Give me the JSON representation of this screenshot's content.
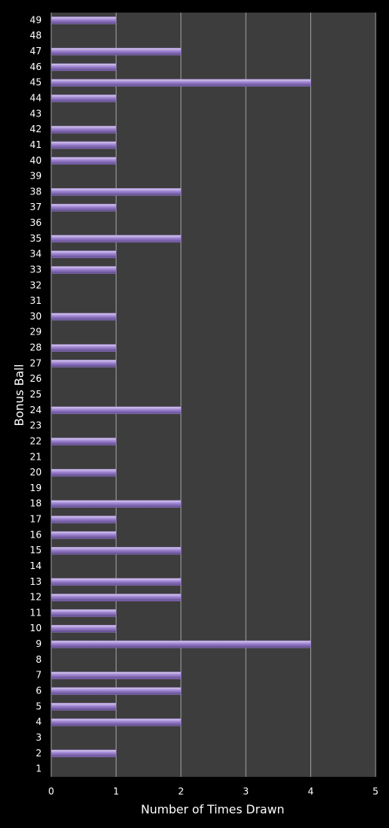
{
  "chart_data": {
    "type": "bar",
    "orientation": "horizontal",
    "y_label": "Bonus Ball",
    "x_label": "Number of Times Drawn",
    "categories": [
      "1",
      "2",
      "3",
      "4",
      "5",
      "6",
      "7",
      "8",
      "9",
      "10",
      "11",
      "12",
      "13",
      "14",
      "15",
      "16",
      "17",
      "18",
      "19",
      "20",
      "21",
      "22",
      "23",
      "24",
      "25",
      "26",
      "27",
      "28",
      "29",
      "30",
      "31",
      "32",
      "33",
      "34",
      "35",
      "36",
      "37",
      "38",
      "39",
      "40",
      "41",
      "42",
      "43",
      "44",
      "45",
      "46",
      "47",
      "48",
      "49"
    ],
    "values": [
      0,
      1,
      0,
      2,
      1,
      2,
      2,
      0,
      4,
      1,
      1,
      2,
      2,
      0,
      2,
      1,
      1,
      2,
      0,
      1,
      0,
      1,
      0,
      2,
      0,
      0,
      1,
      1,
      0,
      1,
      0,
      0,
      1,
      1,
      2,
      0,
      1,
      2,
      0,
      1,
      1,
      1,
      0,
      1,
      4,
      1,
      2,
      0,
      1
    ],
    "color": "#9b80cf",
    "xlim": [
      0,
      5
    ],
    "xticks": [
      0,
      1,
      2,
      3,
      4,
      5
    ],
    "grid": true
  }
}
